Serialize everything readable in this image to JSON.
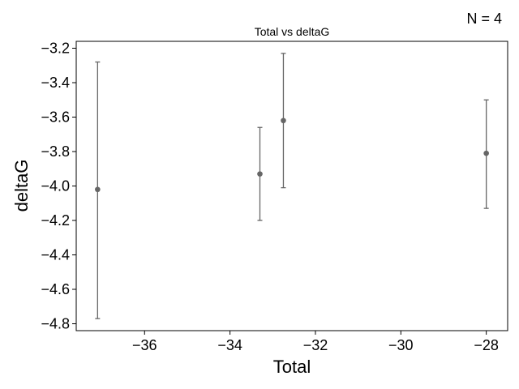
{
  "annotation": {
    "n_text": "N = 4"
  },
  "chart_data": {
    "type": "scatter",
    "title": "Total vs deltaG",
    "xlabel": "Total",
    "ylabel": "deltaG",
    "xlim": [
      -37.6,
      -27.5
    ],
    "ylim": [
      -4.84,
      -3.16
    ],
    "xticks": [
      -36,
      -34,
      -32,
      -30,
      -28
    ],
    "xtick_labels": [
      "−36",
      "−34",
      "−32",
      "−30",
      "−28"
    ],
    "yticks": [
      -4.8,
      -4.6,
      -4.4,
      -4.2,
      -4.0,
      -3.8,
      -3.6,
      -3.4,
      -3.2
    ],
    "ytick_labels": [
      "−4.8",
      "−4.6",
      "−4.4",
      "−4.2",
      "−4.0",
      "−3.8",
      "−3.6",
      "−3.4",
      "−3.2"
    ],
    "grid": false,
    "color": "#666666",
    "points": [
      {
        "x": -37.1,
        "y": -4.02,
        "y_low": -4.77,
        "y_high": -3.28
      },
      {
        "x": -33.3,
        "y": -3.93,
        "y_low": -4.2,
        "y_high": -3.66
      },
      {
        "x": -32.75,
        "y": -3.62,
        "y_low": -4.01,
        "y_high": -3.23
      },
      {
        "x": -28.0,
        "y": -3.81,
        "y_low": -4.13,
        "y_high": -3.5
      }
    ]
  }
}
